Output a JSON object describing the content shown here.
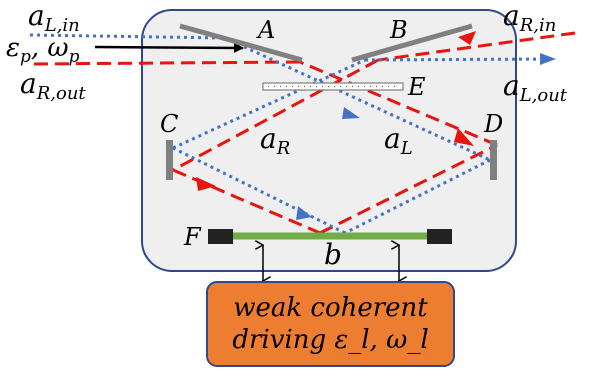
{
  "labels": {
    "a_L_in": "a_{L,in}",
    "a_R_in": "a_{R,in}",
    "a_R_out": "a_{R,out}",
    "a_L_out": "a_{L,out}",
    "eps_p_omega_p": "ε_p, ω_p",
    "mirror_A": "A",
    "mirror_B": "B",
    "mirror_C": "C",
    "mirror_D": "D",
    "element_E": "E",
    "element_F": "F",
    "mode_a_R": "a_R",
    "mode_a_L": "a_L",
    "mode_b": "b"
  },
  "drive_box": {
    "line1": "weak coherent",
    "line2": "driving ε_l, ω_l"
  },
  "colors": {
    "frame_fill": "#efefef",
    "frame_stroke": "#2e4a8a",
    "red_beam": "#e8150f",
    "blue_beam": "#4472c4",
    "mirror": "#808080",
    "membrane": "#70ad47",
    "clamp": "#222222",
    "box_fill": "#ed7d31",
    "box_stroke": "#2e4a8a"
  }
}
